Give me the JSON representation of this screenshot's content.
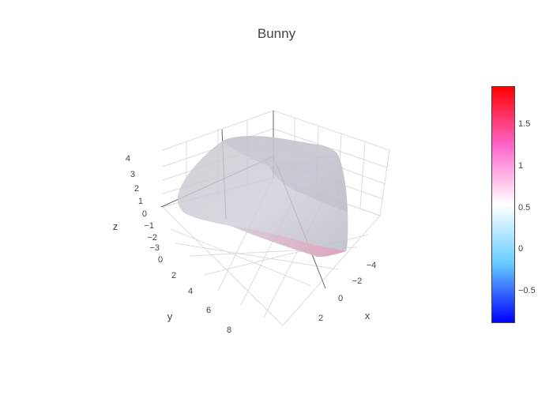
{
  "title": "Bunny",
  "chart_data": {
    "type": "mesh3d",
    "title": "Bunny",
    "axes": {
      "x": {
        "label": "x",
        "ticks": [
          "−4",
          "−2",
          "0",
          "2"
        ]
      },
      "y": {
        "label": "y",
        "ticks": [
          "0",
          "2",
          "4",
          "6",
          "8"
        ]
      },
      "z": {
        "label": "z",
        "ticks": [
          "4",
          "3",
          "2",
          "1",
          "0",
          "−1",
          "−2",
          "−3"
        ]
      }
    },
    "colorbar": {
      "ticks": [
        "1.5",
        "1",
        "0.5",
        "0",
        "−0.5"
      ],
      "range": [
        -0.9,
        1.95
      ],
      "colorscale": [
        "#0000ff",
        "#66ccff",
        "#ffffff",
        "#ff66cc",
        "#ff0000"
      ]
    },
    "surface_color": "#c8c8cf"
  }
}
